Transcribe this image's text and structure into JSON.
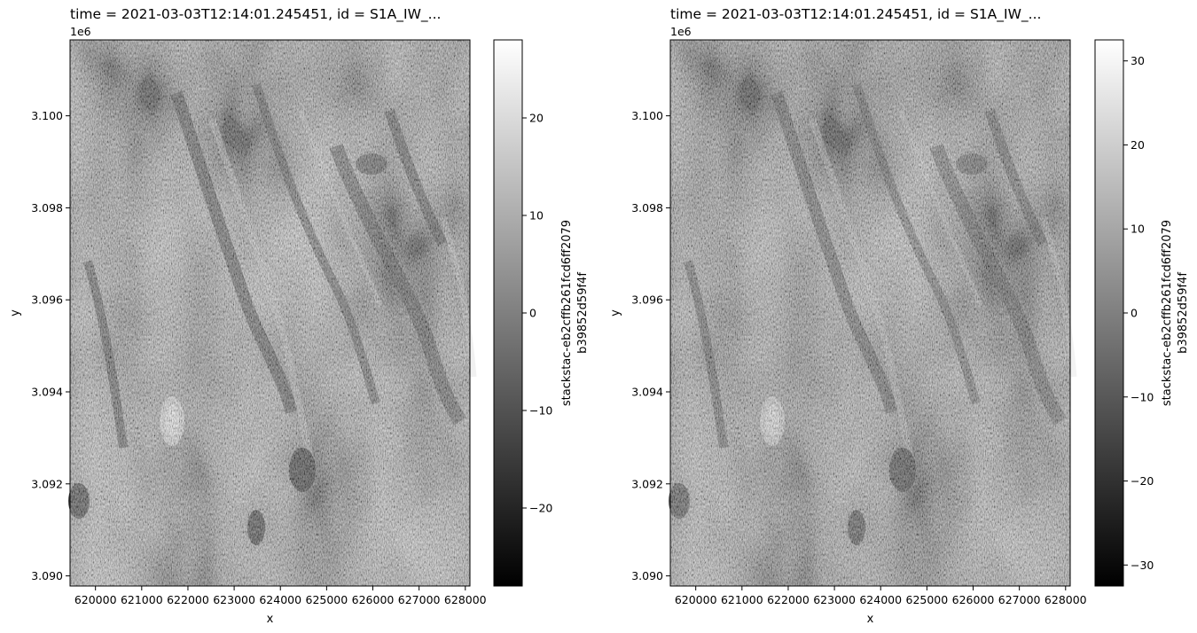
{
  "chart_data": [
    {
      "type": "heatmap",
      "title": "time = 2021-03-03T12:14:01.245451, id = S1A_IW_...",
      "xlabel": "x",
      "ylabel": "y",
      "y_offset_label": "1e6",
      "x_ticks": [
        620000,
        621000,
        622000,
        623000,
        624000,
        625000,
        626000,
        627000,
        628000
      ],
      "y_ticks": [
        3.09,
        3.092,
        3.094,
        3.096,
        3.098,
        3.1
      ],
      "xlim": [
        619450,
        628100
      ],
      "ylim": [
        3.08978,
        3.10165
      ],
      "colorbar": {
        "label_line1": "stackstac-eb2cffb261fcd6ff2079",
        "label_line2": "b39852d59f4f",
        "range": [
          -28,
          28
        ],
        "ticks": [
          -20,
          -10,
          0,
          10,
          20
        ],
        "colormap": "gray"
      }
    },
    {
      "type": "heatmap",
      "title": "time = 2021-03-03T12:14:01.245451, id = S1A_IW_...",
      "xlabel": "x",
      "ylabel": "y",
      "y_offset_label": "1e6",
      "x_ticks": [
        620000,
        621000,
        622000,
        623000,
        624000,
        625000,
        626000,
        627000,
        628000
      ],
      "y_ticks": [
        3.09,
        3.092,
        3.094,
        3.096,
        3.098,
        3.1
      ],
      "xlim": [
        619450,
        628100
      ],
      "ylim": [
        3.08978,
        3.10165
      ],
      "colorbar": {
        "label_line1": "stackstac-eb2cffb261fcd6ff2079",
        "label_line2": "b39852d59f4f",
        "range": [
          -32.5,
          32.5
        ],
        "ticks": [
          -30,
          -20,
          -10,
          0,
          10,
          20,
          30
        ],
        "colormap": "gray"
      }
    }
  ]
}
